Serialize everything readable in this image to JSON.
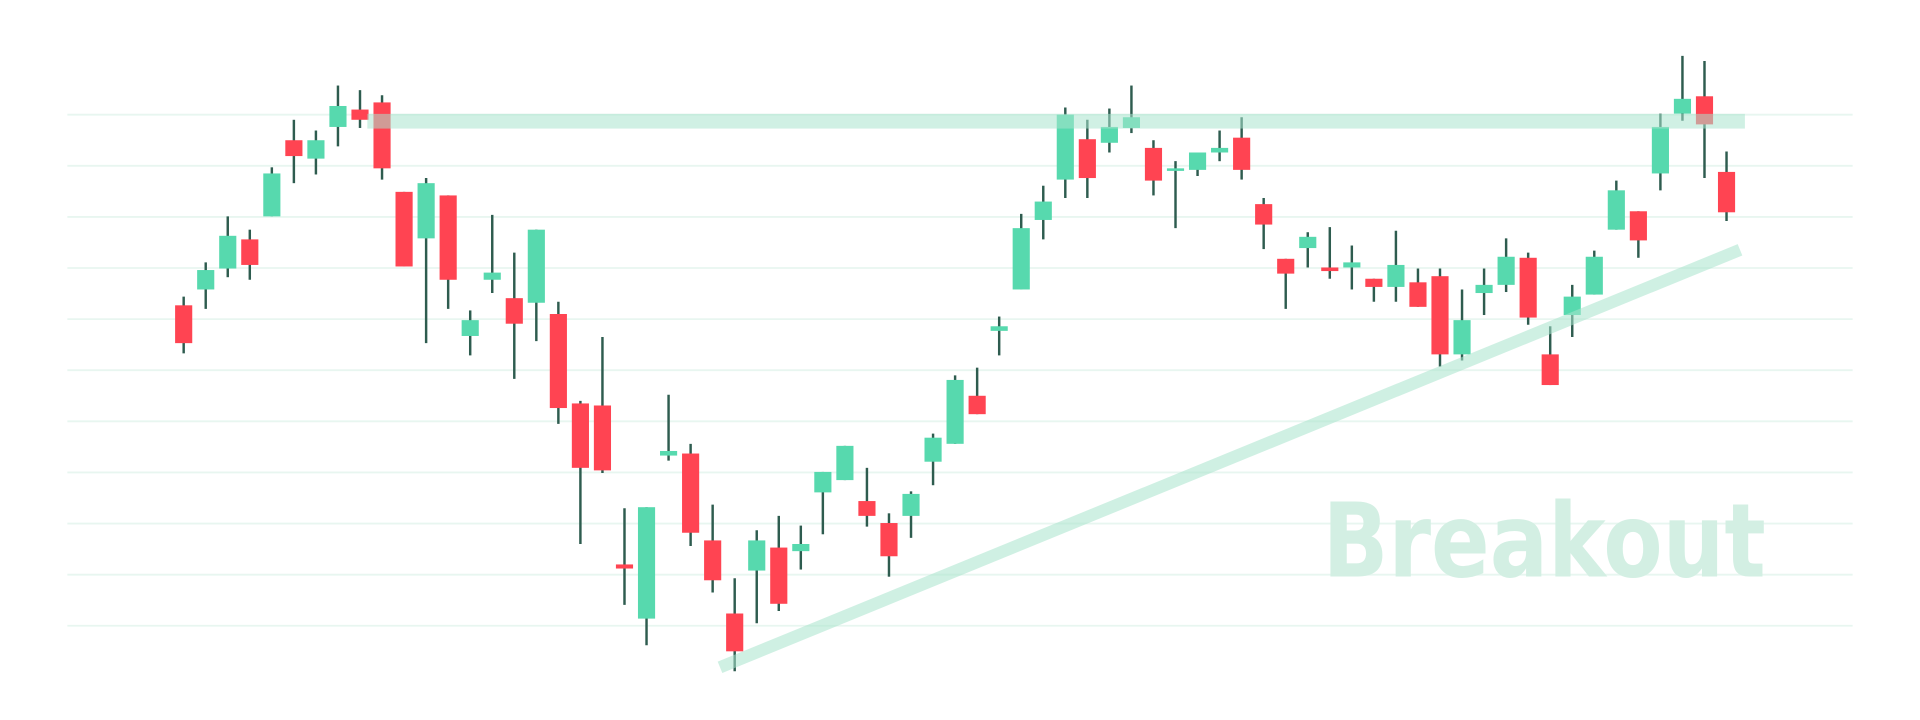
{
  "chart_data": {
    "type": "candlestick",
    "annotation": "Breakout",
    "up_color": "#57d9ae",
    "down_color": "#ff4452",
    "ylim": [
      -17,
      121
    ],
    "yticks": [
      0,
      10,
      20,
      30,
      40,
      50,
      60,
      70,
      80,
      90,
      100
    ],
    "grid": true,
    "open": [
      62.7,
      65.8,
      69.9,
      75.6,
      80.1,
      95.0,
      91.4,
      97.6,
      101.0,
      102.4,
      84.9,
      75.8,
      84.2,
      56.7,
      67.7,
      64.1,
      63.2,
      61.0,
      43.5,
      43.1,
      12.0,
      1.4,
      33.3,
      33.7,
      16.7,
      2.4,
      10.8,
      15.3,
      14.6,
      26.1,
      28.5,
      24.4,
      20.1,
      21.5,
      32.1,
      35.6,
      45.0,
      57.7,
      65.8,
      79.4,
      87.3,
      95.2,
      94.5,
      97.4,
      93.5,
      89.0,
      89.2,
      92.6,
      95.5,
      82.5,
      71.8,
      73.9,
      70.1,
      70.1,
      67.9,
      66.3,
      67.2,
      68.4,
      53.1,
      65.1,
      66.7,
      72.0,
      53.1,
      60.8,
      64.8,
      77.5,
      81.1,
      88.5,
      100.2,
      103.6,
      88.8
    ],
    "high": [
      64.4,
      71.1,
      80.1,
      77.5,
      89.7,
      99.0,
      96.9,
      105.7,
      104.8,
      103.8,
      84.9,
      87.6,
      84.2,
      61.7,
      80.4,
      73.0,
      77.5,
      63.4,
      44.0,
      56.5,
      23.0,
      23.2,
      45.2,
      35.6,
      23.7,
      9.3,
      18.7,
      21.5,
      19.6,
      30.1,
      35.2,
      30.9,
      22.0,
      26.3,
      37.6,
      49.0,
      50.5,
      60.5,
      80.6,
      86.1,
      101.4,
      99.0,
      101.2,
      105.7,
      95.0,
      90.9,
      92.6,
      96.9,
      99.5,
      83.7,
      71.8,
      77.0,
      78.0,
      74.4,
      67.9,
      77.3,
      69.9,
      69.9,
      65.8,
      69.9,
      75.8,
      73.0,
      58.6,
      66.7,
      73.4,
      87.1,
      81.1,
      100.2,
      111.5,
      110.5,
      92.8
    ],
    "low": [
      53.3,
      62.0,
      68.2,
      67.7,
      80.1,
      86.6,
      88.3,
      93.8,
      97.4,
      87.3,
      70.3,
      55.3,
      62.0,
      52.9,
      65.1,
      48.3,
      55.7,
      39.5,
      16.0,
      29.9,
      4.1,
      -3.8,
      32.3,
      15.6,
      6.5,
      -8.9,
      0.5,
      2.9,
      11.0,
      17.9,
      28.5,
      19.4,
      9.6,
      17.2,
      27.5,
      35.6,
      41.4,
      52.9,
      65.8,
      75.6,
      83.7,
      83.7,
      92.6,
      96.4,
      84.2,
      77.8,
      88.0,
      90.9,
      87.3,
      73.7,
      62.0,
      70.1,
      67.9,
      65.8,
      63.4,
      63.4,
      62.4,
      50.7,
      51.9,
      60.8,
      65.3,
      58.9,
      47.1,
      56.5,
      64.8,
      77.5,
      72.0,
      85.2,
      98.8,
      87.6,
      79.2
    ],
    "close": [
      55.3,
      69.6,
      76.3,
      70.6,
      88.5,
      91.9,
      95.0,
      101.7,
      99.0,
      89.5,
      70.3,
      86.6,
      67.7,
      59.8,
      69.1,
      59.1,
      77.5,
      42.6,
      30.9,
      30.4,
      11.2,
      23.2,
      34.2,
      18.2,
      8.9,
      -5.0,
      16.7,
      4.3,
      16.0,
      30.1,
      35.2,
      21.5,
      13.6,
      25.8,
      36.8,
      48.1,
      41.4,
      58.6,
      77.8,
      83.0,
      100.0,
      87.6,
      97.6,
      99.5,
      87.1,
      89.5,
      92.6,
      93.5,
      89.2,
      78.5,
      68.9,
      76.1,
      69.4,
      71.1,
      66.3,
      70.6,
      62.4,
      53.1,
      59.8,
      66.7,
      72.2,
      60.3,
      47.1,
      64.4,
      72.2,
      85.2,
      75.4,
      97.6,
      103.1,
      98.1,
      80.9
    ]
  }
}
